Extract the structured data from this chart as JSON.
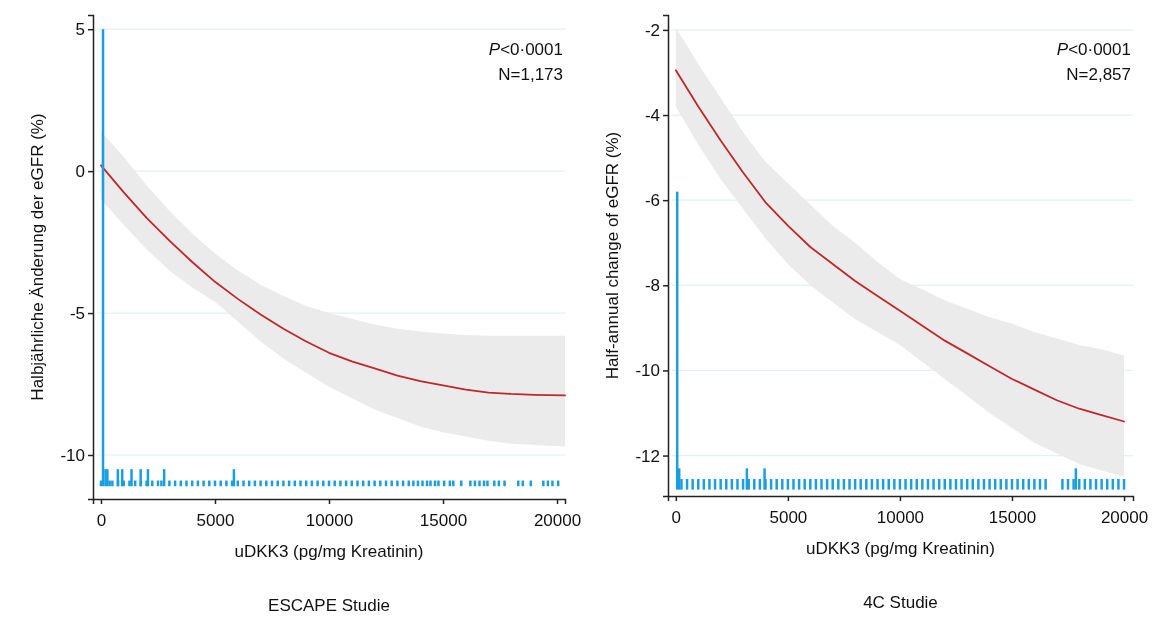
{
  "chart_data": [
    {
      "type": "line",
      "title": "ESCAPE Studie",
      "xlabel": "uDKK3 (pg/mg Kreatinin)",
      "ylabel": "Halbjährliche Änderung der eGFR (%)",
      "annotations": [
        "P<0·0001",
        "N=1,173"
      ],
      "xlim": [
        -350,
        20350
      ],
      "ylim": [
        -11.55,
        5.5
      ],
      "xticks": [
        0,
        5000,
        10000,
        15000,
        20000
      ],
      "yticks": [
        5,
        0,
        -5,
        -10
      ],
      "grid": "y",
      "series": [
        {
          "color": "#c0272d",
          "x": [
            0,
            1000,
            2000,
            3000,
            4000,
            5000,
            6000,
            7000,
            8000,
            9000,
            10000,
            11000,
            12000,
            13000,
            14000,
            15000,
            16000,
            17000,
            18000,
            19000,
            20350
          ],
          "values": [
            0.2,
            -0.75,
            -1.65,
            -2.45,
            -3.2,
            -3.9,
            -4.5,
            -5.05,
            -5.55,
            -6.0,
            -6.4,
            -6.7,
            -6.95,
            -7.2,
            -7.4,
            -7.55,
            -7.7,
            -7.8,
            -7.85,
            -7.88,
            -7.9
          ],
          "upper": [
            1.4,
            0.5,
            -0.5,
            -1.4,
            -2.2,
            -2.9,
            -3.5,
            -4.0,
            -4.4,
            -4.75,
            -5.0,
            -5.2,
            -5.4,
            -5.55,
            -5.65,
            -5.72,
            -5.77,
            -5.8,
            -5.8,
            -5.8,
            -5.8
          ],
          "lower": [
            -1.0,
            -1.9,
            -2.75,
            -3.5,
            -4.1,
            -4.6,
            -5.3,
            -6.0,
            -6.6,
            -7.1,
            -7.6,
            -8.0,
            -8.4,
            -8.7,
            -9.0,
            -9.2,
            -9.35,
            -9.5,
            -9.6,
            -9.65,
            -9.7
          ]
        },
        {
          "type": "bar",
          "color": "#1a9ee0",
          "x": [
            0,
            90,
            200,
            280,
            380,
            500,
            740,
            750,
            930,
            1000,
            1250,
            1340,
            1500,
            1740,
            1750,
            2000,
            2060,
            2250,
            2500,
            2650,
            2770,
            3000,
            3250,
            3500,
            3750,
            4000,
            4250,
            4500,
            4750,
            5000,
            5250,
            5500,
            5750,
            5830,
            6000,
            6250,
            6500,
            6750,
            7000,
            7250,
            7500,
            7750,
            8000,
            8250,
            8500,
            8750,
            9000,
            9250,
            9500,
            9750,
            10000,
            10250,
            10500,
            10750,
            11000,
            11250,
            11500,
            11750,
            12000,
            12250,
            12500,
            12750,
            13000,
            13250,
            13500,
            13700,
            13900,
            14100,
            14300,
            14450,
            14650,
            14800,
            15050,
            15300,
            15450,
            15800,
            16200,
            16400,
            16600,
            16800,
            16950,
            17250,
            17450,
            17700,
            18300,
            18500,
            18850,
            19400,
            19600,
            19800,
            20050
          ],
          "values": [
            0.2,
            16.1,
            0.6,
            0.6,
            0.2,
            0.2,
            0.6,
            0.2,
            0.6,
            0.2,
            0.2,
            0.6,
            0.2,
            0.6,
            0.2,
            0.2,
            0.6,
            0.2,
            0.2,
            0.2,
            0.6,
            0.2,
            0.2,
            0.2,
            0.2,
            0.2,
            0.2,
            0.2,
            0.2,
            0.2,
            0.2,
            0.2,
            0.2,
            0.6,
            0.2,
            0.2,
            0.2,
            0.2,
            0.2,
            0.2,
            0.2,
            0.2,
            0.2,
            0.2,
            0.2,
            0.2,
            0.2,
            0.2,
            0.2,
            0.2,
            0.2,
            0.2,
            0.2,
            0.2,
            0.2,
            0.2,
            0.2,
            0.2,
            0.2,
            0.2,
            0.2,
            0.2,
            0.2,
            0.2,
            0.2,
            0.2,
            0.2,
            0.2,
            0.2,
            0.2,
            0.2,
            0.2,
            0.2,
            0.2,
            0.2,
            0.2,
            0.2,
            0.2,
            0.2,
            0.2,
            0.2,
            0.2,
            0.2,
            0.2,
            0.2,
            0.2,
            0.2,
            0.2,
            0.2,
            0.2,
            0.2
          ],
          "base": [
            -11.1,
            -11.1,
            -11.1,
            -11.1,
            -11.1,
            -11.1,
            -11.1,
            -11.1,
            -11.1,
            -11.1,
            -11.1,
            -11.1,
            -11.1,
            -11.1,
            -11.1,
            -11.1,
            -11.1,
            -11.1,
            -11.1,
            -11.1,
            -11.1,
            -11.1,
            -11.1,
            -11.1,
            -11.1,
            -11.1,
            -11.1,
            -11.1,
            -11.1,
            -11.1,
            -11.1,
            -11.1,
            -11.1,
            -11.1,
            -11.1,
            -11.1,
            -11.1,
            -11.1,
            -11.1,
            -11.1,
            -11.1,
            -11.1,
            -11.1,
            -11.1,
            -11.1,
            -11.1,
            -11.1,
            -11.1,
            -11.1,
            -11.1,
            -11.1,
            -11.1,
            -11.1,
            -11.1,
            -11.1,
            -11.1,
            -11.1,
            -11.1,
            -11.1,
            -11.1,
            -11.1,
            -11.1,
            -11.1,
            -11.1,
            -11.1,
            -11.1,
            -11.1,
            -11.1,
            -11.1,
            -11.1,
            -11.1,
            -11.1,
            -11.1,
            -11.1,
            -11.1,
            -11.1,
            -11.1,
            -11.1,
            -11.1,
            -11.1,
            -11.1,
            -11.1,
            -11.1,
            -11.1,
            -11.1,
            -11.1,
            -11.1,
            -11.1,
            -11.1,
            -11.1,
            -11.1
          ]
        }
      ]
    },
    {
      "type": "line",
      "title": "4C Studie",
      "xlabel": "uDKK3 (pg/mg Kreatinin)",
      "ylabel": "Half-annual change of eGFR (%)",
      "annotations": [
        "P<0·0001",
        "N=2,857"
      ],
      "xlim": [
        -350,
        20400
      ],
      "ylim": [
        -12.95,
        -1.65
      ],
      "xticks": [
        0,
        5000,
        10000,
        15000,
        20000
      ],
      "yticks": [
        -2,
        -4,
        -6,
        -8,
        -10,
        -12
      ],
      "grid": "y",
      "series": [
        {
          "color": "#c0272d",
          "x": [
            0,
            1000,
            2000,
            3000,
            4000,
            5000,
            6000,
            7000,
            8000,
            9000,
            10000,
            11000,
            12000,
            13000,
            14000,
            15000,
            16000,
            17000,
            18000,
            19000,
            20000
          ],
          "values": [
            -2.95,
            -3.8,
            -4.6,
            -5.35,
            -6.05,
            -6.6,
            -7.1,
            -7.5,
            -7.9,
            -8.25,
            -8.6,
            -8.95,
            -9.3,
            -9.6,
            -9.9,
            -10.2,
            -10.45,
            -10.7,
            -10.9,
            -11.05,
            -11.2
          ],
          "upper": [
            -1.95,
            -2.8,
            -3.6,
            -4.4,
            -5.1,
            -5.6,
            -6.1,
            -6.6,
            -7.0,
            -7.45,
            -7.85,
            -8.1,
            -8.35,
            -8.55,
            -8.75,
            -8.9,
            -9.1,
            -9.25,
            -9.4,
            -9.5,
            -9.65
          ],
          "lower": [
            -3.8,
            -4.7,
            -5.5,
            -6.2,
            -6.9,
            -7.5,
            -8.0,
            -8.4,
            -8.8,
            -9.1,
            -9.4,
            -9.8,
            -10.2,
            -10.6,
            -11.0,
            -11.35,
            -11.7,
            -11.95,
            -12.2,
            -12.35,
            -12.5
          ]
        },
        {
          "type": "bar",
          "color": "#1a9ee0",
          "x": [
            60,
            150,
            250,
            500,
            750,
            1000,
            1250,
            1500,
            1750,
            2000,
            2250,
            2500,
            2750,
            3000,
            3170,
            3250,
            3500,
            3750,
            3960,
            4000,
            4250,
            4500,
            4750,
            5000,
            5250,
            5500,
            5750,
            6000,
            6250,
            6500,
            6750,
            7000,
            7250,
            7500,
            7750,
            8000,
            8250,
            8500,
            8750,
            9000,
            9250,
            9500,
            9750,
            10000,
            10250,
            10500,
            10750,
            11000,
            11250,
            11500,
            11750,
            12000,
            12250,
            12500,
            12750,
            13000,
            13250,
            13500,
            13750,
            14000,
            14250,
            14500,
            14750,
            15000,
            15250,
            15500,
            15750,
            16000,
            16250,
            16500,
            17250,
            17500,
            17750,
            17850,
            18000,
            18250,
            18500,
            18750,
            19000,
            19250,
            19500,
            19750,
            20000
          ],
          "values": [
            7.0,
            0.5,
            0.25,
            0.25,
            0.25,
            0.25,
            0.25,
            0.25,
            0.25,
            0.25,
            0.25,
            0.25,
            0.25,
            0.25,
            0.5,
            0.25,
            0.25,
            0.25,
            0.5,
            0.25,
            0.25,
            0.25,
            0.25,
            0.25,
            0.25,
            0.25,
            0.25,
            0.25,
            0.25,
            0.25,
            0.25,
            0.25,
            0.25,
            0.25,
            0.25,
            0.25,
            0.25,
            0.25,
            0.25,
            0.25,
            0.25,
            0.25,
            0.25,
            0.25,
            0.25,
            0.25,
            0.25,
            0.25,
            0.25,
            0.25,
            0.25,
            0.25,
            0.25,
            0.25,
            0.25,
            0.25,
            0.25,
            0.25,
            0.25,
            0.25,
            0.25,
            0.25,
            0.25,
            0.25,
            0.25,
            0.25,
            0.25,
            0.25,
            0.25,
            0.25,
            0.25,
            0.25,
            0.25,
            0.5,
            0.25,
            0.25,
            0.25,
            0.25,
            0.25,
            0.25,
            0.25,
            0.25,
            0.25
          ],
          "base": [
            -12.8,
            -12.8,
            -12.8,
            -12.8,
            -12.8,
            -12.8,
            -12.8,
            -12.8,
            -12.8,
            -12.8,
            -12.8,
            -12.8,
            -12.8,
            -12.8,
            -12.8,
            -12.8,
            -12.8,
            -12.8,
            -12.8,
            -12.8,
            -12.8,
            -12.8,
            -12.8,
            -12.8,
            -12.8,
            -12.8,
            -12.8,
            -12.8,
            -12.8,
            -12.8,
            -12.8,
            -12.8,
            -12.8,
            -12.8,
            -12.8,
            -12.8,
            -12.8,
            -12.8,
            -12.8,
            -12.8,
            -12.8,
            -12.8,
            -12.8,
            -12.8,
            -12.8,
            -12.8,
            -12.8,
            -12.8,
            -12.8,
            -12.8,
            -12.8,
            -12.8,
            -12.8,
            -12.8,
            -12.8,
            -12.8,
            -12.8,
            -12.8,
            -12.8,
            -12.8,
            -12.8,
            -12.8,
            -12.8,
            -12.8,
            -12.8,
            -12.8,
            -12.8,
            -12.8,
            -12.8,
            -12.8,
            -12.8,
            -12.8,
            -12.8,
            -12.8,
            -12.8,
            -12.8,
            -12.8,
            -12.8,
            -12.8,
            -12.8,
            -12.8,
            -12.8,
            -12.8
          ]
        }
      ]
    }
  ]
}
